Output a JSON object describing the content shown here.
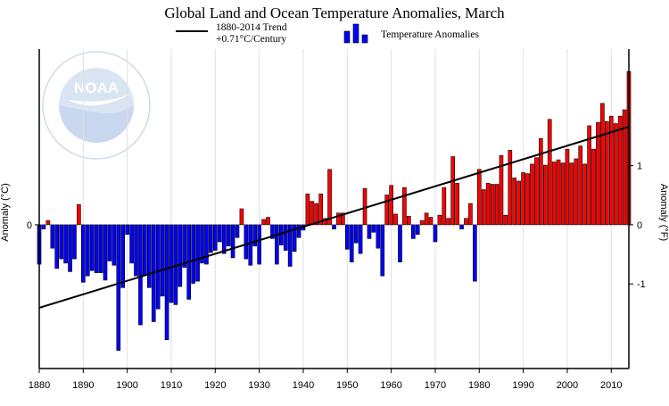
{
  "chart_data": {
    "type": "bar",
    "title": "Global Land and Ocean Temperature Anomalies, March",
    "xlabel": "",
    "ylabel_left": "Anomaly (°C)",
    "ylabel_right": "Anomaly (°F)",
    "xlim": [
      1880,
      2014
    ],
    "ylim_c": [
      -1.35,
      1.65
    ],
    "left_ticks": [
      0
    ],
    "right_ticks": [
      -1,
      0,
      1
    ],
    "x_ticks": [
      1880,
      1890,
      1900,
      1910,
      1920,
      1930,
      1940,
      1950,
      1960,
      1970,
      1980,
      1990,
      2000,
      2010
    ],
    "grid": true,
    "legend": {
      "trend_label_line1": "1880-2014 Trend",
      "trend_label_line2": "+0.71°C/Century",
      "bars_label": "Temperature Anomalies"
    },
    "trend": {
      "x": [
        1880,
        2014
      ],
      "y": [
        -0.78,
        0.92
      ]
    },
    "series": [
      {
        "start_year": 1880,
        "values": [
          -0.37,
          -0.04,
          0.04,
          -0.22,
          -0.41,
          -0.32,
          -0.36,
          -0.44,
          -0.32,
          0.19,
          -0.54,
          -0.48,
          -0.43,
          -0.45,
          -0.45,
          -0.52,
          -0.34,
          -0.38,
          -1.18,
          -0.59,
          -0.09,
          -0.36,
          -0.48,
          -0.94,
          -0.47,
          -0.59,
          -0.91,
          -0.79,
          -0.67,
          -1.08,
          -0.73,
          -0.75,
          -0.58,
          -0.4,
          -0.7,
          -0.55,
          -0.53,
          -0.36,
          -0.37,
          -0.26,
          -0.24,
          -0.16,
          -0.27,
          -0.2,
          -0.31,
          -0.12,
          0.15,
          -0.32,
          -0.38,
          -0.2,
          -0.37,
          0.05,
          0.07,
          -0.13,
          -0.37,
          -0.19,
          -0.24,
          -0.39,
          -0.25,
          -0.12,
          -0.05,
          0.29,
          0.22,
          0.2,
          0.29,
          0.06,
          0.52,
          -0.04,
          0.11,
          0.11,
          -0.23,
          -0.35,
          -0.17,
          -0.27,
          0.34,
          -0.13,
          -0.07,
          -0.22,
          -0.48,
          0.28,
          0.37,
          0.1,
          -0.35,
          0.35,
          0.08,
          -0.13,
          -0.09,
          0.04,
          0.11,
          0.07,
          -0.16,
          0.09,
          0.35,
          0.06,
          0.64,
          0.39,
          -0.04,
          0.06,
          0.2,
          -0.53,
          0.52,
          0.33,
          0.39,
          0.38,
          0.38,
          0.65,
          0.09,
          0.7,
          0.44,
          0.41,
          0.49,
          0.48,
          0.57,
          0.63,
          0.81,
          0.56,
          0.99,
          0.59,
          0.61,
          0.58,
          0.71,
          0.58,
          0.62,
          0.74,
          0.57,
          0.93,
          0.71,
          0.96,
          1.14,
          0.97,
          1.02,
          0.95,
          1.02,
          1.08,
          1.44
        ]
      }
    ],
    "colors": {
      "positive": "#ff0000",
      "negative": "#0000ff",
      "trend": "#000000",
      "grid": "#e0e0e0"
    }
  },
  "watermark": {
    "logo_text": "NOAA",
    "ring_text": "NATIONAL OCEANIC AND ATMOSPHERIC ADMINISTRATION · U.S. DEPARTMENT OF COMMERCE"
  }
}
